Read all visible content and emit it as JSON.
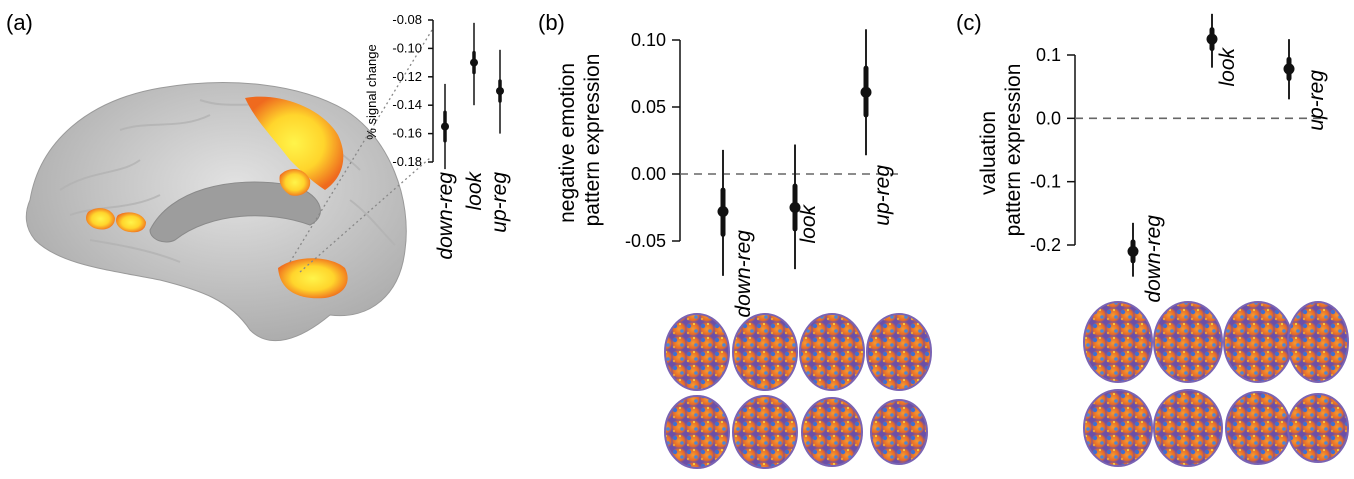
{
  "panels": {
    "a": {
      "label": "(a)"
    },
    "b": {
      "label": "(b)"
    },
    "c": {
      "label": "(c)"
    }
  },
  "chart_data": [
    {
      "id": "a",
      "type": "scatter",
      "title": "",
      "ylabel": "% signal change",
      "ylim": [
        -0.18,
        -0.08
      ],
      "yticks": [
        "-0.08",
        "-0.10",
        "-0.12",
        "-0.14",
        "-0.16",
        "-0.18"
      ],
      "categories": [
        "down-reg",
        "look",
        "up-reg"
      ],
      "values": [
        -0.155,
        -0.11,
        -0.13
      ],
      "error_inner": [
        [
          -0.165,
          -0.145
        ],
        [
          -0.117,
          -0.103
        ],
        [
          -0.137,
          -0.123
        ]
      ],
      "error_outer": [
        [
          -0.185,
          -0.125
        ],
        [
          -0.14,
          -0.082
        ],
        [
          -0.16,
          -0.101
        ]
      ],
      "grid": false
    },
    {
      "id": "b",
      "type": "scatter",
      "title": "",
      "ylabel": "negative emotion pattern expression",
      "ylim": [
        -0.05,
        0.1
      ],
      "yticks": [
        "0.10",
        "0.05",
        "0.00",
        "-0.05"
      ],
      "categories": [
        "down-reg",
        "look",
        "up-reg"
      ],
      "values": [
        -0.028,
        -0.025,
        0.061
      ],
      "error_inner": [
        [
          -0.045,
          -0.012
        ],
        [
          -0.041,
          -0.009
        ],
        [
          0.044,
          0.079
        ]
      ],
      "error_outer": [
        [
          -0.076,
          0.018
        ],
        [
          -0.071,
          0.022
        ],
        [
          0.014,
          0.108
        ]
      ],
      "zero_line": "dashed",
      "grid": false
    },
    {
      "id": "c",
      "type": "scatter",
      "title": "",
      "ylabel": "valuation pattern expression",
      "ylim": [
        -0.2,
        0.1
      ],
      "yticks": [
        "0.1",
        "0.0",
        "-0.1",
        "-0.2"
      ],
      "categories": [
        "down-reg",
        "look",
        "up-reg"
      ],
      "values": [
        -0.21,
        0.125,
        0.078
      ],
      "error_inner": [
        [
          -0.225,
          -0.195
        ],
        [
          0.11,
          0.14
        ],
        [
          0.063,
          0.093
        ]
      ],
      "error_outer": [
        [
          -0.25,
          -0.165
        ],
        [
          0.08,
          0.165
        ],
        [
          0.03,
          0.125
        ]
      ],
      "zero_line": "dashed",
      "grid": false
    }
  ],
  "colors": {
    "ink": "#111111",
    "dash": "#666666",
    "brain_gray": "#c9c9c9",
    "activation_outer": "#f08a2a",
    "activation_inner": "#ffe63c",
    "map_orange": "#e8722a",
    "map_blue": "#3f6fd0"
  }
}
